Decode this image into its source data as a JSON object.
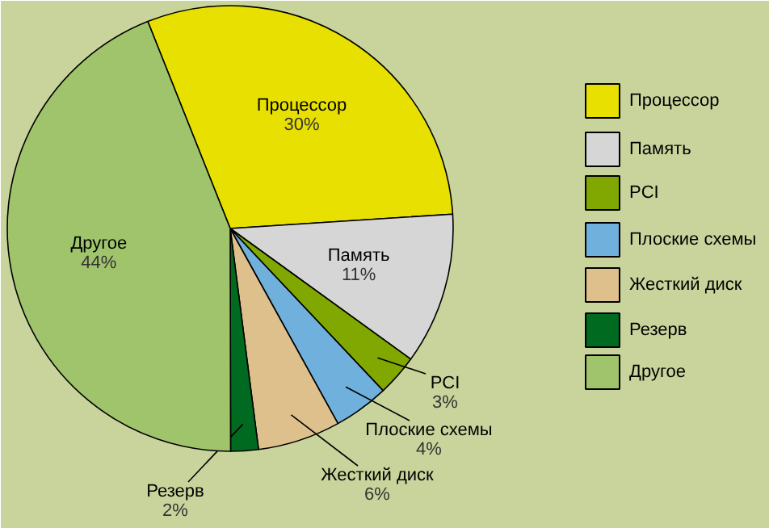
{
  "chart_data": {
    "type": "pie",
    "categories": [
      "Процессор",
      "Память",
      "PCI",
      "Плоские схемы",
      "Жесткий диск",
      "Резерв",
      "Другое"
    ],
    "values": [
      30,
      11,
      3,
      4,
      6,
      2,
      44
    ],
    "colors": [
      "#e8e000",
      "#d6d6d6",
      "#80a800",
      "#70b0dc",
      "#dec08c",
      "#006a20",
      "#a0c46c"
    ],
    "value_labels": [
      "30%",
      "11%",
      "3%",
      "4%",
      "6%",
      "2%",
      "44%"
    ],
    "legend": "right"
  }
}
